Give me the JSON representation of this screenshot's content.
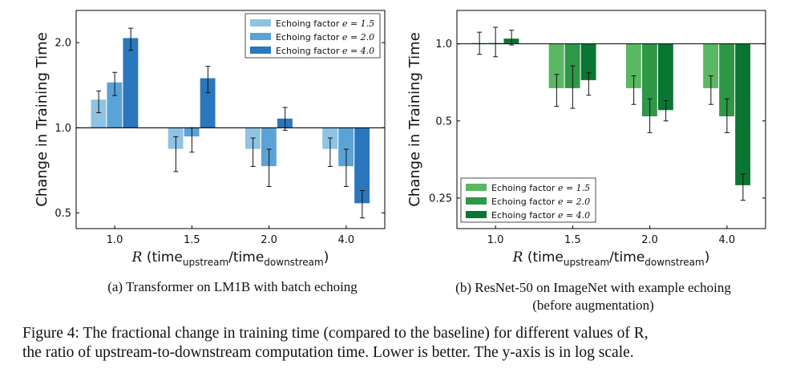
{
  "chart_data": [
    {
      "type": "bar",
      "title": "(a) Transformer on LM1B with batch echoing",
      "xlabel": "R (time_upstream/time_downstream)",
      "xlabel_parts": {
        "italic": "R",
        "open": " (time",
        "sub1": "upstream",
        "mid": "/time",
        "sub2": "downstream",
        "close": ")"
      },
      "ylabel": "Change in Training Time",
      "yscale": "log",
      "ylim": [
        0.44,
        2.6
      ],
      "yticks": [
        0.5,
        1.0,
        2.0
      ],
      "ytick_labels": [
        "0.5",
        "1.0",
        "2.0"
      ],
      "baseline": 1.0,
      "categories": [
        "1.0",
        "1.5",
        "2.0",
        "4.0"
      ],
      "legend_location": "top-right",
      "series": [
        {
          "name": "Echoing factor e=1.5",
          "label_text": "Echoing factor",
          "label_math": "e = 1.5",
          "color": "#8fc3e3",
          "values": [
            1.26,
            0.84,
            0.84,
            0.84
          ],
          "err_low": [
            1.13,
            0.7,
            0.73,
            0.73
          ],
          "err_high": [
            1.35,
            0.93,
            0.92,
            0.92
          ]
        },
        {
          "name": "Echoing factor e=2.0",
          "label_text": "Echoing factor",
          "label_math": "e = 2.0",
          "color": "#5aa3d6",
          "values": [
            1.45,
            0.93,
            0.73,
            0.73
          ],
          "err_low": [
            1.3,
            0.82,
            0.62,
            0.62
          ],
          "err_high": [
            1.57,
            1.0,
            0.84,
            0.84
          ]
        },
        {
          "name": "Echoing factor e=4.0",
          "label_text": "Echoing factor",
          "label_math": "e = 4.0",
          "color": "#2a77bd",
          "values": [
            2.08,
            1.5,
            1.08,
            0.54
          ],
          "err_low": [
            1.88,
            1.33,
            0.98,
            0.48
          ],
          "err_high": [
            2.25,
            1.65,
            1.18,
            0.6
          ]
        }
      ]
    },
    {
      "type": "bar",
      "title": "(b) ResNet-50 on ImageNet with example echoing (before augmentation)",
      "xlabel": "R (time_upstream/time_downstream)",
      "xlabel_parts": {
        "italic": "R",
        "open": " (time",
        "sub1": "upstream",
        "mid": "/time",
        "sub2": "downstream",
        "close": ")"
      },
      "ylabel": "Change in Training Time",
      "yscale": "log",
      "ylim": [
        0.19,
        1.35
      ],
      "yticks": [
        0.25,
        0.5,
        1.0
      ],
      "ytick_labels": [
        "0.25",
        "0.5",
        "1.0"
      ],
      "baseline": 1.0,
      "categories": [
        "1.0",
        "1.5",
        "2.0",
        "4.0"
      ],
      "legend_location": "bottom-left",
      "series": [
        {
          "name": "Echoing factor e=1.5",
          "label_text": "Echoing factor",
          "label_math": "e = 1.5",
          "color": "#5ab762",
          "values": [
            1.01,
            0.67,
            0.67,
            0.67
          ],
          "err_low": [
            0.91,
            0.57,
            0.58,
            0.58
          ],
          "err_high": [
            1.11,
            0.76,
            0.75,
            0.75
          ]
        },
        {
          "name": "Echoing factor e=2.0",
          "label_text": "Echoing factor",
          "label_math": "e = 2.0",
          "color": "#2f9748",
          "values": [
            1.01,
            0.67,
            0.52,
            0.52
          ],
          "err_low": [
            0.89,
            0.56,
            0.45,
            0.45
          ],
          "err_high": [
            1.16,
            0.82,
            0.61,
            0.61
          ]
        },
        {
          "name": "Echoing factor e=4.0",
          "label_text": "Echoing factor",
          "label_math": "e = 4.0",
          "color": "#0b7533",
          "values": [
            1.05,
            0.72,
            0.55,
            0.28
          ],
          "err_low": [
            0.99,
            0.63,
            0.5,
            0.245
          ],
          "err_high": [
            1.13,
            0.77,
            0.6,
            0.31
          ]
        }
      ]
    }
  ],
  "subcaptions": {
    "a": "(a) Transformer on LM1B with batch echoing",
    "b_line1": "(b) ResNet-50 on ImageNet with example echoing",
    "b_line2": "(before augmentation)"
  },
  "figure_caption": {
    "line1": "Figure 4: The fractional change in training time (compared to the baseline) for different values of R,",
    "line2": "the ratio of upstream-to-downstream computation time. Lower is better. The y-axis is in log scale."
  }
}
